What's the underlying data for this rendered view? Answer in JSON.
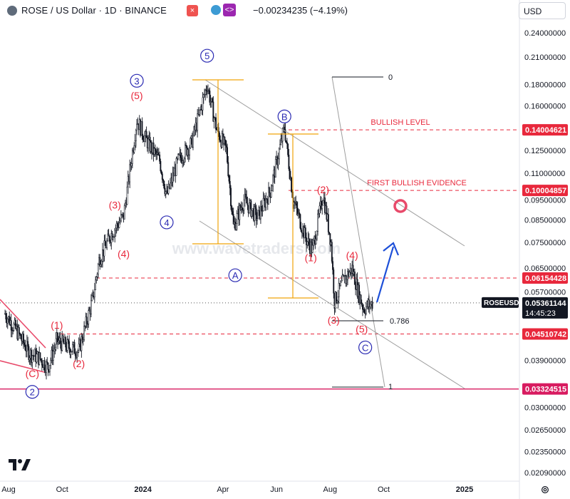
{
  "header": {
    "symbol_title": "ROSE / US Dollar · 1D · BINANCE",
    "close_icon": "close-icon",
    "indicator_icon": "indicator-icon",
    "change_text": "−0.00234235 (−4.19%)",
    "currency": "USD"
  },
  "watermark": "www.wavetraders.com",
  "colors": {
    "axis_text": "#131722",
    "red_label": "#e8283c",
    "blue_label": "#2b2bb3",
    "orange": "#f0a30a",
    "arrow": "#1d4fd8",
    "channel": "#9e9e9e"
  },
  "chart_data": {
    "type": "candlestick",
    "title": "ROSE / US Dollar · 1D · BINANCE",
    "y_scale": "log",
    "ylim": [
      0.0195,
      0.265
    ],
    "x_ticks": [
      "Aug",
      "Oct",
      "2024",
      "Apr",
      "Jun",
      "Aug",
      "Oct",
      "2025"
    ],
    "y_ticks": [
      "0.24000000",
      "0.21000000",
      "0.18000000",
      "0.16000000",
      "0.14004621",
      "0.12500000",
      "0.11000000",
      "0.10004857",
      "0.09500000",
      "0.08500000",
      "0.07500000",
      "0.06500000",
      "0.06154428",
      "0.05700000",
      "0.05361144",
      "0.04510742",
      "0.03900000",
      "0.03324515",
      "0.03000000",
      "0.02650000",
      "0.02350000",
      "0.02090000"
    ],
    "price_levels": [
      {
        "label": "BULLISH LEVEL",
        "value": 0.14004621
      },
      {
        "label": "FIRST BULLISH EVIDENCE",
        "value": 0.10004857
      },
      {
        "label": "",
        "value": 0.06154428
      },
      {
        "label": "",
        "value": 0.04510742
      },
      {
        "label": "",
        "value": 0.03324515
      }
    ],
    "current_price": {
      "symbol": "ROSEUSD",
      "value": "0.05361144",
      "countdown": "14:45:23"
    },
    "fib_labels": [
      "0",
      "0.786",
      "1"
    ],
    "wave_labels": [
      {
        "text": "(1)",
        "style": "red",
        "price": 0.0465,
        "date": "2023-09-25"
      },
      {
        "text": "(2)",
        "style": "red",
        "price": 0.0375,
        "date": "2023-10-20"
      },
      {
        "text": "(3)",
        "style": "red",
        "price": 0.0905,
        "date": "2023-11-30"
      },
      {
        "text": "(4)",
        "style": "red",
        "price": 0.069,
        "date": "2023-12-10"
      },
      {
        "text": "(5)",
        "style": "red",
        "price": 0.166,
        "date": "2023-12-25"
      },
      {
        "text": "(C)",
        "style": "red",
        "price": 0.0355,
        "date": "2023-08-28"
      },
      {
        "text": "2",
        "style": "blue-circle",
        "price": 0.0322,
        "date": "2023-08-28"
      },
      {
        "text": "3",
        "style": "blue-circle",
        "price": 0.181,
        "date": "2023-12-25"
      },
      {
        "text": "4",
        "style": "blue-circle",
        "price": 0.0825,
        "date": "2024-01-28"
      },
      {
        "text": "5",
        "style": "blue-circle",
        "price": 0.208,
        "date": "2024-03-14"
      },
      {
        "text": "A",
        "style": "blue-circle",
        "price": 0.0615,
        "date": "2024-04-15"
      },
      {
        "text": "B",
        "style": "blue-circle",
        "price": 0.1485,
        "date": "2024-06-10"
      },
      {
        "text": "(2)",
        "style": "red",
        "price": 0.0985,
        "date": "2024-07-24"
      },
      {
        "text": "(1)",
        "style": "red",
        "price": 0.0675,
        "date": "2024-07-10"
      },
      {
        "text": "(3)",
        "style": "red",
        "price": 0.0478,
        "date": "2024-08-05"
      },
      {
        "text": "(4)",
        "style": "red",
        "price": 0.0685,
        "date": "2024-08-26"
      },
      {
        "text": "(5)",
        "style": "red",
        "price": 0.0455,
        "date": "2024-09-06"
      },
      {
        "text": "C",
        "style": "blue-circle",
        "price": 0.0412,
        "date": "2024-09-10"
      }
    ],
    "annotations": [
      "BULLISH LEVEL",
      "FIRST BULLISH EVIDENCE"
    ]
  }
}
